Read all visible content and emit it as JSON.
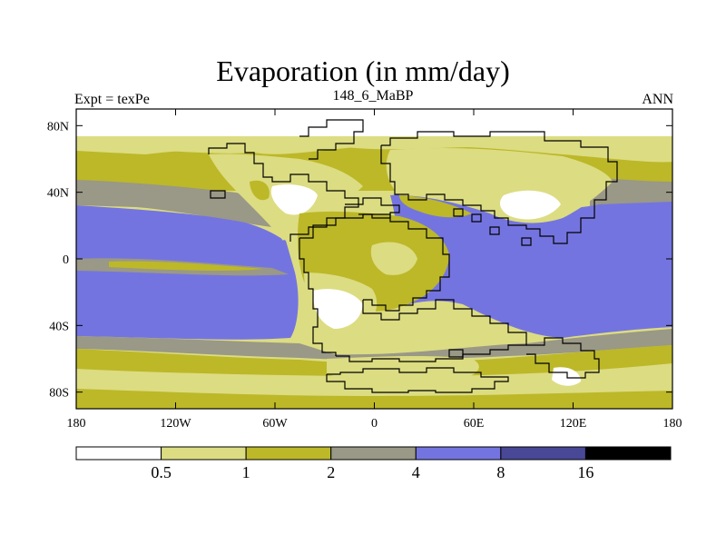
{
  "title": "Evaporation (in mm/day)",
  "subtitle_left": "Expt = texPe",
  "subtitle_center": "148_6_MaBP",
  "subtitle_right": "ANN",
  "colors": {
    "white": "#ffffff",
    "light_olive": "#dcdc82",
    "olive": "#bcb828",
    "gray": "#9a9886",
    "blue": "#7474e0",
    "dark_blue": "#484896",
    "black": "#000000"
  },
  "map_data": {
    "variable": "Evaporation",
    "units": "mm/day",
    "lon_range": [
      -180,
      180
    ],
    "lat_range": [
      -90,
      90
    ],
    "x_ticks": [
      {
        "value": -180,
        "label": "180"
      },
      {
        "value": -120,
        "label": "120W"
      },
      {
        "value": -60,
        "label": "60W"
      },
      {
        "value": 0,
        "label": "0"
      },
      {
        "value": 60,
        "label": "60E"
      },
      {
        "value": 120,
        "label": "120E"
      },
      {
        "value": 180,
        "label": "180"
      }
    ],
    "y_ticks": [
      {
        "value": 80,
        "label": "80N"
      },
      {
        "value": 40,
        "label": "40N"
      },
      {
        "value": 0,
        "label": "0"
      },
      {
        "value": -40,
        "label": "40S"
      },
      {
        "value": -80,
        "label": "80S"
      }
    ]
  },
  "colorbar": {
    "bins": [
      "white",
      "light_olive",
      "olive",
      "gray",
      "blue",
      "dark_blue",
      "black"
    ],
    "labels": [
      "0.5",
      "1",
      "2",
      "4",
      "8",
      "16"
    ]
  }
}
